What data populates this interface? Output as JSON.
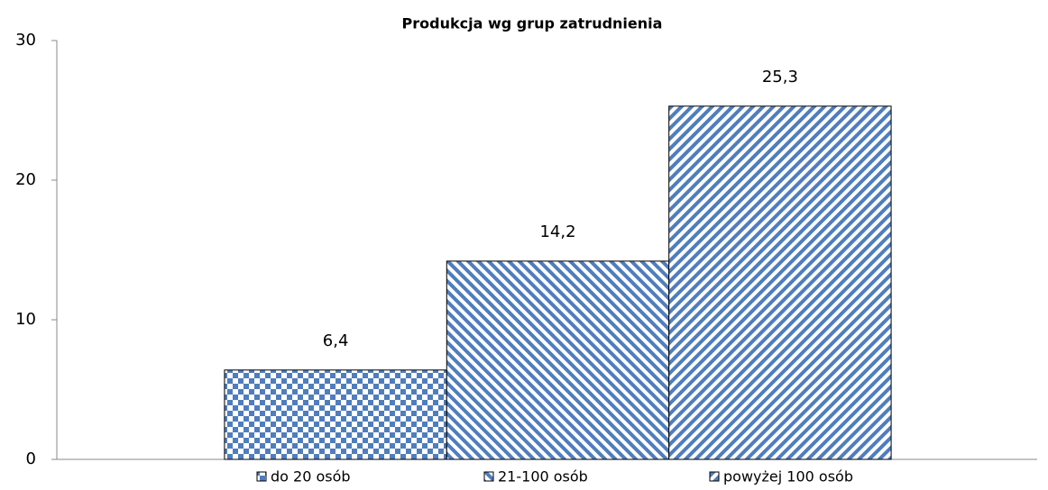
{
  "chart_data": {
    "type": "bar",
    "title": "Produkcja wg grup zatrudnienia",
    "categories": [
      null
    ],
    "series": [
      {
        "name": "do 20 osób",
        "color": "#4f7dbd",
        "pattern": "checker",
        "values": [
          6.4
        ],
        "value_labels": [
          "6,4"
        ]
      },
      {
        "name": "21-100 osób",
        "color": "#4f7dbd",
        "pattern": "diagonal-down",
        "values": [
          14.2
        ],
        "value_labels": [
          "14,2"
        ]
      },
      {
        "name": "powyżej 100 osób",
        "color": "#4f7dbd",
        "pattern": "diagonal-up",
        "values": [
          25.3
        ],
        "value_labels": [
          "25,3"
        ]
      }
    ],
    "ylim": [
      0,
      30
    ],
    "yticks": [
      0,
      10,
      20,
      30
    ],
    "grid": false,
    "legend": "bottom"
  }
}
